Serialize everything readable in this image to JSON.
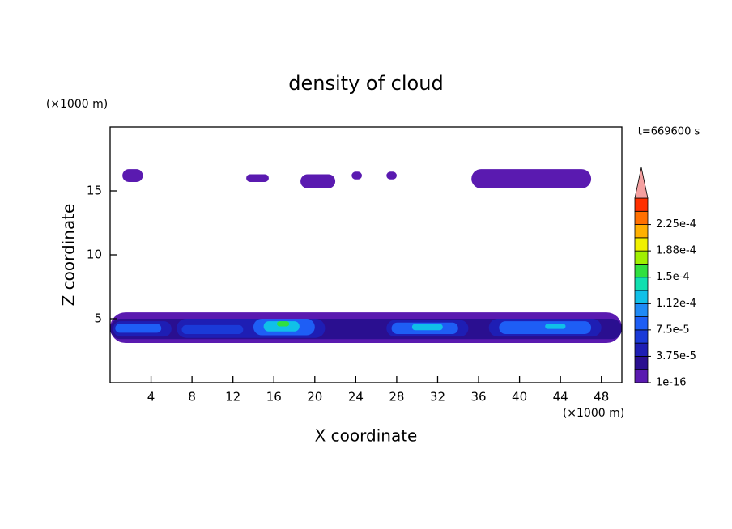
{
  "chart_data": {
    "type": "contour",
    "title": "density of cloud",
    "x_label": "X coordinate",
    "y_label": "Z coordinate",
    "x_unit": "(×1000 m)",
    "y_unit": "(×1000 m)",
    "time_label": "t=669600 s",
    "xlim": [
      0,
      50
    ],
    "ylim": [
      0,
      20
    ],
    "xticks": [
      4,
      8,
      12,
      16,
      20,
      24,
      28,
      32,
      36,
      40,
      44,
      48
    ],
    "yticks": [
      5,
      10,
      15
    ],
    "colorbar": {
      "lim": [
        1e-16,
        0.0002625
      ],
      "ticks": [
        {
          "value": 1e-16,
          "label": "1e-16"
        },
        {
          "value": 3.75e-05,
          "label": "3.75e-5"
        },
        {
          "value": 7.5e-05,
          "label": "7.5e-5"
        },
        {
          "value": 0.0001125,
          "label": "1.12e-4"
        },
        {
          "value": 0.00015,
          "label": "1.5e-4"
        },
        {
          "value": 0.0001875,
          "label": "1.88e-4"
        },
        {
          "value": 0.000225,
          "label": "2.25e-4"
        }
      ],
      "colors": [
        "#5a1ab0",
        "#2a0f90",
        "#1e1eb4",
        "#1a3ad8",
        "#1e5ef5",
        "#1f8af5",
        "#10c0e8",
        "#10e0b0",
        "#30e040",
        "#a0f000",
        "#f0f000",
        "#ffb000",
        "#ff7000",
        "#ff3000"
      ],
      "extend_color": "#f4a0a0"
    },
    "regions": [
      {
        "x": [
          1.2,
          3.2
        ],
        "z": [
          15.7,
          16.7
        ],
        "level": 1e-16
      },
      {
        "x": [
          13.3,
          15.5
        ],
        "z": [
          15.7,
          16.3
        ],
        "level": 1e-16
      },
      {
        "x": [
          18.6,
          22
        ],
        "z": [
          15.2,
          16.3
        ],
        "level": 1e-16
      },
      {
        "x": [
          23.6,
          24.6
        ],
        "z": [
          15.9,
          16.5
        ],
        "level": 1e-16
      },
      {
        "x": [
          27,
          28
        ],
        "z": [
          15.9,
          16.5
        ],
        "level": 1e-16
      },
      {
        "x": [
          35.3,
          47
        ],
        "z": [
          15.2,
          16.7
        ],
        "level": 1e-16
      },
      {
        "x": [
          0,
          50
        ],
        "z": [
          3.1,
          5.5
        ],
        "level": 1e-16
      },
      {
        "x": [
          0,
          50
        ],
        "z": [
          3.4,
          5.0
        ],
        "level": 1.875e-05
      },
      {
        "x": [
          0.3,
          6
        ],
        "z": [
          3.6,
          4.8
        ],
        "level": 3.75e-05
      },
      {
        "x": [
          6.5,
          21
        ],
        "z": [
          3.5,
          5.0
        ],
        "level": 3.75e-05
      },
      {
        "x": [
          27,
          35
        ],
        "z": [
          3.6,
          4.9
        ],
        "level": 3.75e-05
      },
      {
        "x": [
          37,
          48
        ],
        "z": [
          3.6,
          5.0
        ],
        "level": 3.75e-05
      },
      {
        "x": [
          0.5,
          5
        ],
        "z": [
          3.9,
          4.6
        ],
        "level": 7.5e-05
      },
      {
        "x": [
          7,
          13
        ],
        "z": [
          3.8,
          4.5
        ],
        "level": 5.63e-05
      },
      {
        "x": [
          14,
          20
        ],
        "z": [
          3.7,
          5.0
        ],
        "level": 7.5e-05
      },
      {
        "x": [
          27.5,
          34
        ],
        "z": [
          3.8,
          4.7
        ],
        "level": 7.5e-05
      },
      {
        "x": [
          38,
          47
        ],
        "z": [
          3.8,
          4.8
        ],
        "level": 7.5e-05
      },
      {
        "x": [
          15,
          18.5
        ],
        "z": [
          4.0,
          4.8
        ],
        "level": 0.0001125
      },
      {
        "x": [
          29.5,
          32.5
        ],
        "z": [
          4.1,
          4.6
        ],
        "level": 0.0001125
      },
      {
        "x": [
          42.5,
          44.5
        ],
        "z": [
          4.2,
          4.6
        ],
        "level": 0.0001125
      },
      {
        "x": [
          16.3,
          17.5
        ],
        "z": [
          4.4,
          4.8
        ],
        "level": 0.00015
      }
    ]
  }
}
